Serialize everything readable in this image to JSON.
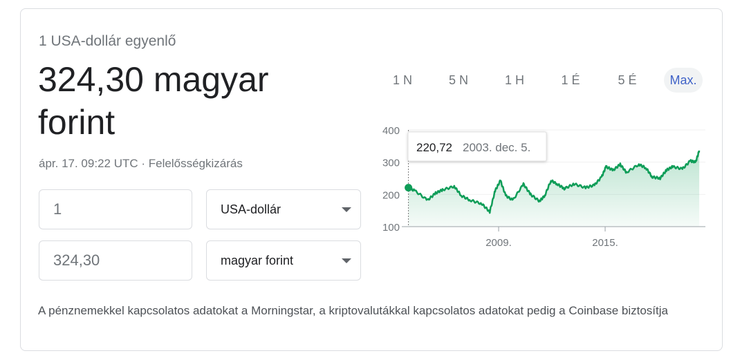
{
  "header": {
    "subtitle": "1 USA-dollár egyenlő",
    "result": "324,30 magyar forint",
    "timestamp": "ápr. 17. 09:22 UTC",
    "separator": "·",
    "disclaimer": "Felelősségkizárás"
  },
  "converter": {
    "from_amount": "1",
    "from_currency": "USA-dollár",
    "to_amount": "324,30",
    "to_currency": "magyar forint"
  },
  "range_tabs": [
    {
      "label": "1 N"
    },
    {
      "label": "5 N"
    },
    {
      "label": "1 H"
    },
    {
      "label": "1 É"
    },
    {
      "label": "5 É"
    },
    {
      "label": "Max.",
      "active": true
    }
  ],
  "tooltip": {
    "value": "220,72",
    "date": "2003. dec. 5."
  },
  "footer": "A pénznemekkel kapcsolatos adatokat a Morningstar, a kriptovalutákkal kapcsolatos adatokat pedig a Coinbase biztosítja",
  "chart_data": {
    "type": "area",
    "ylim": [
      100,
      400
    ],
    "yticks": [
      "400",
      "300",
      "200",
      "100"
    ],
    "xticks": [
      "2009.",
      "2015."
    ],
    "grid": true,
    "color": "#0f9d58",
    "x": [
      2003.92,
      2004.29,
      2005.0,
      2005.45,
      2005.84,
      2006.5,
      2006.9,
      2007.4,
      2008.05,
      2008.5,
      2008.8,
      2009.1,
      2009.4,
      2009.8,
      2010.4,
      2010.8,
      2011.3,
      2011.6,
      2011.95,
      2012.3,
      2012.7,
      2013.25,
      2013.9,
      2014.4,
      2014.8,
      2015.05,
      2015.45,
      2015.85,
      2016.2,
      2016.9,
      2017.3,
      2017.65,
      2018.1,
      2018.45,
      2018.8,
      2019.35,
      2019.8,
      2020.1,
      2020.3
    ],
    "y": [
      220.72,
      211,
      182,
      204,
      214,
      225,
      196,
      182,
      171,
      146,
      211,
      243,
      196,
      182,
      232,
      200,
      179,
      196,
      243,
      232,
      218,
      232,
      221,
      229,
      254,
      286,
      275,
      293,
      268,
      293,
      282,
      254,
      250,
      275,
      286,
      279,
      304,
      300,
      336
    ]
  }
}
